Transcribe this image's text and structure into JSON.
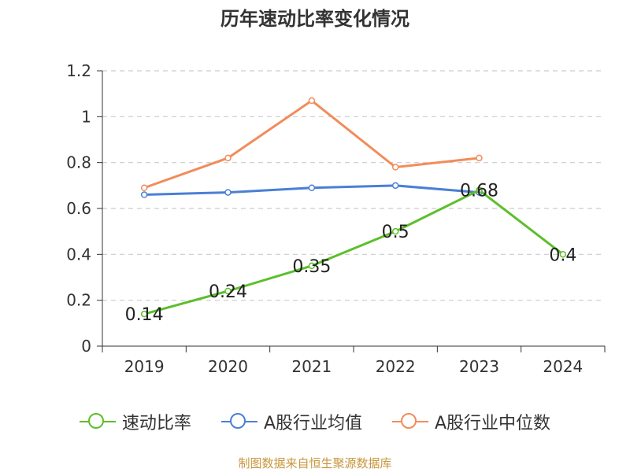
{
  "chart_data": {
    "type": "line",
    "title": "历年速动比率变化情况",
    "categories": [
      "2019",
      "2020",
      "2021",
      "2022",
      "2023",
      "2024"
    ],
    "ylim": [
      0,
      1.2
    ],
    "yticks": [
      "0",
      "0.2",
      "0.4",
      "0.6",
      "0.8",
      "1",
      "1.2"
    ],
    "grid": true,
    "legend_position": "bottom",
    "series": [
      {
        "name": "速动比率",
        "color": "#5cbf2a",
        "values": [
          0.14,
          0.24,
          0.35,
          0.5,
          0.68,
          0.4
        ],
        "labels": [
          "0.14",
          "0.24",
          "0.35",
          "0.5",
          "0.68",
          "0.4"
        ]
      },
      {
        "name": "A股行业均值",
        "color": "#4a7fd6",
        "values": [
          0.66,
          0.67,
          0.69,
          0.7,
          0.67,
          null
        ]
      },
      {
        "name": "A股行业中位数",
        "color": "#f28c5a",
        "values": [
          0.69,
          0.82,
          1.07,
          0.78,
          0.82,
          null
        ]
      }
    ]
  },
  "source_text": "制图数据来自恒生聚源数据库"
}
